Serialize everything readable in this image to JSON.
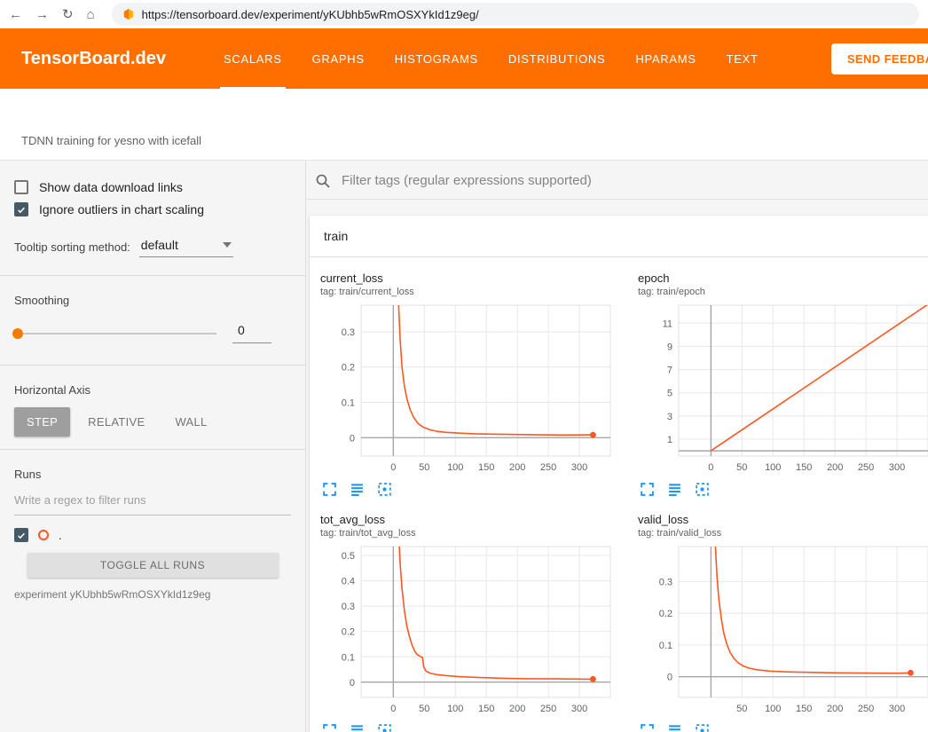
{
  "browser": {
    "url": "https://tensorboard.dev/experiment/yKUbhb5wRmOSXYkId1z9eg/"
  },
  "icons": {
    "back": "←",
    "forward": "→",
    "reload": "↻",
    "home": "⌂"
  },
  "header": {
    "brand": "TensorBoard.dev",
    "tabs": [
      {
        "label": "SCALARS",
        "active": true
      },
      {
        "label": "GRAPHS",
        "active": false
      },
      {
        "label": "HISTOGRAMS",
        "active": false
      },
      {
        "label": "DISTRIBUTIONS",
        "active": false
      },
      {
        "label": "HPARAMS",
        "active": false
      },
      {
        "label": "TEXT",
        "active": false
      }
    ],
    "feedback_label": "SEND FEEDBACK"
  },
  "toolbar": {
    "experiment_title": "TDNN training for yesno with icefall"
  },
  "sidebar": {
    "show_download_label": "Show data download links",
    "ignore_outliers_label": "Ignore outliers in chart scaling",
    "tooltip_sorting_label": "Tooltip sorting method:",
    "tooltip_sorting_value": "default",
    "smoothing_label": "Smoothing",
    "smoothing_value": "0",
    "horizontal_axis_label": "Horizontal Axis",
    "axis_buttons": [
      "STEP",
      "RELATIVE",
      "WALL"
    ],
    "runs_label": "Runs",
    "runs_filter_placeholder": "Write a regex to filter runs",
    "run_item_label": ".",
    "toggle_all_label": "TOGGLE ALL RUNS",
    "experiment_label": "experiment yKUbhb5wRmOSXYkId1z9eg"
  },
  "main": {
    "filter_placeholder": "Filter tags (regular expressions supported)",
    "group_title": "train"
  },
  "colors": {
    "accent": "#ff6f00",
    "chart_line": "#ff5722",
    "action_icon_blue": "#2196f3",
    "checkbox_dark": "#455a64"
  },
  "chart_action_icons": [
    "expand-chart",
    "data-series",
    "fit-domain"
  ],
  "chart_data": [
    {
      "id": "current_loss",
      "type": "line",
      "title": "current_loss",
      "tag": "tag: train/current_loss",
      "xlim": [
        -52,
        350
      ],
      "ylim": [
        -0.052,
        0.375
      ],
      "xticks": [
        0,
        50,
        100,
        150,
        200,
        250,
        300
      ],
      "yticks": [
        0,
        0.1,
        0.2,
        0.3
      ],
      "series": [
        {
          "name": ".",
          "color": "#ff5722",
          "end_marker": true,
          "points": [
            [
              2,
              1.2
            ],
            [
              5,
              0.62
            ],
            [
              8,
              0.4
            ],
            [
              11,
              0.28
            ],
            [
              14,
              0.2
            ],
            [
              18,
              0.145
            ],
            [
              22,
              0.11
            ],
            [
              27,
              0.08
            ],
            [
              33,
              0.057
            ],
            [
              40,
              0.04
            ],
            [
              48,
              0.03
            ],
            [
              58,
              0.023
            ],
            [
              70,
              0.018
            ],
            [
              85,
              0.015
            ],
            [
              105,
              0.013
            ],
            [
              130,
              0.011
            ],
            [
              160,
              0.01
            ],
            [
              200,
              0.009
            ],
            [
              240,
              0.008
            ],
            [
              280,
              0.0075
            ],
            [
              322,
              0.008
            ]
          ]
        }
      ]
    },
    {
      "id": "epoch",
      "type": "line",
      "title": "epoch",
      "tag": "tag: train/epoch",
      "xlim": [
        -52,
        350
      ],
      "ylim": [
        -0.45,
        12.55
      ],
      "xticks": [
        0,
        50,
        100,
        150,
        200,
        250,
        300
      ],
      "yticks": [
        1,
        3,
        5,
        7,
        9,
        11
      ],
      "series": [
        {
          "name": ".",
          "color": "#ff5722",
          "end_marker": false,
          "points": [
            [
              0,
              0
            ],
            [
              352,
              12.7
            ]
          ]
        }
      ]
    },
    {
      "id": "tot_avg_loss",
      "type": "line",
      "title": "tot_avg_loss",
      "tag": "tag: train/tot_avg_loss",
      "xlim": [
        -52,
        350
      ],
      "ylim": [
        -0.06,
        0.535
      ],
      "xticks": [
        0,
        50,
        100,
        150,
        200,
        250,
        300
      ],
      "yticks": [
        0,
        0.1,
        0.2,
        0.3,
        0.4,
        0.5
      ],
      "series": [
        {
          "name": ".",
          "color": "#ff5722",
          "end_marker": true,
          "points": [
            [
              2,
              1.2
            ],
            [
              5,
              0.85
            ],
            [
              8,
              0.62
            ],
            [
              11,
              0.47
            ],
            [
              14,
              0.37
            ],
            [
              18,
              0.28
            ],
            [
              22,
              0.22
            ],
            [
              26,
              0.18
            ],
            [
              30,
              0.148
            ],
            [
              34,
              0.125
            ],
            [
              38,
              0.11
            ],
            [
              43,
              0.102
            ],
            [
              47,
              0.098
            ],
            [
              49,
              0.06
            ],
            [
              53,
              0.043
            ],
            [
              60,
              0.035
            ],
            [
              70,
              0.03
            ],
            [
              85,
              0.026
            ],
            [
              105,
              0.022
            ],
            [
              135,
              0.019
            ],
            [
              170,
              0.016
            ],
            [
              210,
              0.014
            ],
            [
              260,
              0.013
            ],
            [
              310,
              0.012
            ],
            [
              322,
              0.012
            ]
          ]
        }
      ]
    },
    {
      "id": "valid_loss",
      "type": "line",
      "title": "valid_loss",
      "tag": "tag: train/valid_loss",
      "xlim": [
        -52,
        350
      ],
      "ylim": [
        -0.065,
        0.41
      ],
      "xticks": [
        50,
        100,
        150,
        200,
        250,
        300
      ],
      "yticks": [
        0,
        0.1,
        0.2,
        0.3
      ],
      "series": [
        {
          "name": ".",
          "color": "#ff5722",
          "end_marker": true,
          "points": [
            [
              1,
              1.0
            ],
            [
              4,
              0.6
            ],
            [
              7,
              0.42
            ],
            [
              10,
              0.31
            ],
            [
              13,
              0.24
            ],
            [
              17,
              0.18
            ],
            [
              21,
              0.135
            ],
            [
              26,
              0.1
            ],
            [
              31,
              0.077
            ],
            [
              37,
              0.058
            ],
            [
              44,
              0.044
            ],
            [
              52,
              0.034
            ],
            [
              62,
              0.027
            ],
            [
              75,
              0.022
            ],
            [
              95,
              0.018
            ],
            [
              120,
              0.0155
            ],
            [
              155,
              0.014
            ],
            [
              200,
              0.0125
            ],
            [
              250,
              0.0115
            ],
            [
              300,
              0.011
            ],
            [
              322,
              0.0125
            ]
          ]
        }
      ]
    }
  ]
}
